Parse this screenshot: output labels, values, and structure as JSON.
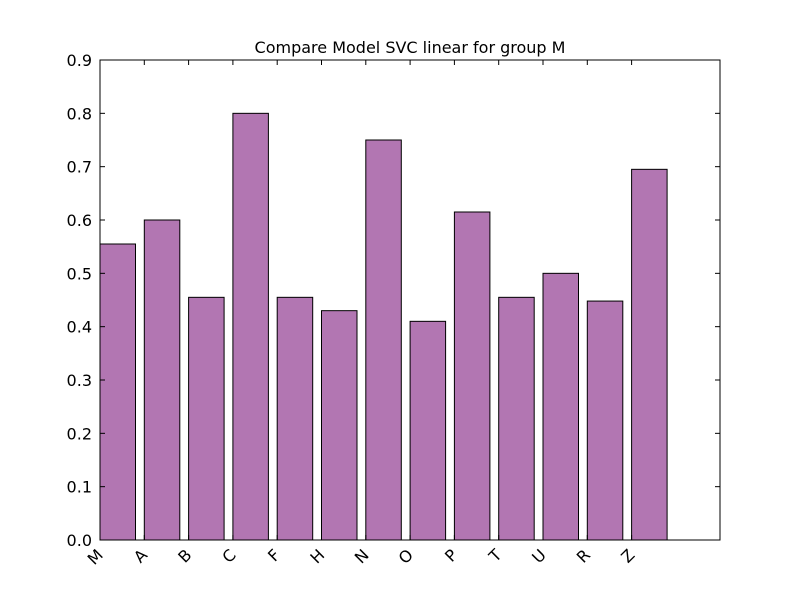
{
  "chart_data": {
    "type": "bar",
    "title": "Compare Model SVC linear for group M",
    "xlabel": "",
    "ylabel": "",
    "categories": [
      "M",
      "A",
      "B",
      "C",
      "F",
      "H",
      "N",
      "O",
      "P",
      "T",
      "U",
      "R",
      "Z"
    ],
    "values": [
      0.555,
      0.6,
      0.455,
      0.8,
      0.455,
      0.43,
      0.75,
      0.41,
      0.615,
      0.455,
      0.5,
      0.448,
      0.695
    ],
    "ylim": [
      0,
      0.9
    ],
    "yticks": [
      "0.0",
      "0.1",
      "0.2",
      "0.3",
      "0.4",
      "0.5",
      "0.6",
      "0.7",
      "0.8",
      "0.9"
    ],
    "grid": false,
    "bar_color": "#b276b2",
    "edge_color": "#000000"
  }
}
